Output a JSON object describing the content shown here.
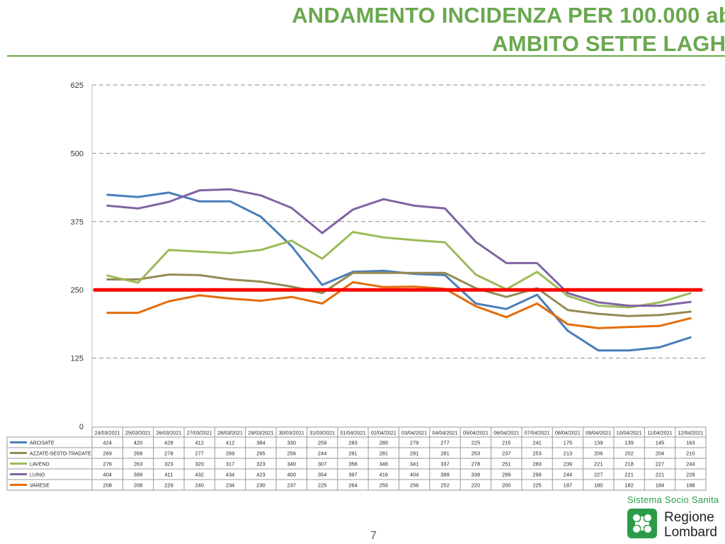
{
  "header": {
    "title_line1": "ANDAMENTO INCIDENZA PER 100.000 ab",
    "title_line2": "AMBITO SETTE LAGHI"
  },
  "page_number": "7",
  "brand": {
    "subtitle": "Sistema Socio Sanita",
    "name_line1": "Regione",
    "name_line2": "Lombard"
  },
  "chart_data": {
    "type": "line",
    "title": "",
    "xlabel": "",
    "ylabel": "",
    "ylim": [
      0,
      625
    ],
    "yticks": [
      0,
      125,
      250,
      375,
      500,
      625
    ],
    "grid": true,
    "threshold": {
      "value": 250,
      "color": "#ff0000"
    },
    "categories": [
      "24/03/2021",
      "25/03/2021",
      "26/03/2021",
      "27/03/2021",
      "28/03/2021",
      "29/03/2021",
      "30/03/2021",
      "31/03/2021",
      "01/04/2021",
      "02/04/2021",
      "03/04/2021",
      "04/04/2021",
      "05/04/2021",
      "06/04/2021",
      "07/04/2021",
      "08/04/2021",
      "09/04/2021",
      "10/04/2021",
      "11/04/2021",
      "12/04/2021"
    ],
    "series": [
      {
        "name": "ARCISATE",
        "color": "#4a7ebb",
        "values": [
          424,
          420,
          428,
          412,
          412,
          384,
          330,
          259,
          283,
          285,
          279,
          277,
          225,
          215,
          241,
          175,
          139,
          139,
          145,
          163
        ]
      },
      {
        "name": "AZZATE-SESTO-TRADATE",
        "color": "#948a54",
        "values": [
          269,
          269,
          278,
          277,
          269,
          265,
          256,
          244,
          281,
          281,
          281,
          281,
          253,
          237,
          253,
          213,
          206,
          202,
          204,
          210
        ]
      },
      {
        "name": "LAVENO",
        "color": "#9bbb59",
        "values": [
          276,
          263,
          323,
          320,
          317,
          323,
          340,
          307,
          356,
          346,
          341,
          337,
          278,
          251,
          283,
          239,
          221,
          218,
          227,
          244
        ]
      },
      {
        "name": "LUINO",
        "color": "#8064a2",
        "values": [
          404,
          399,
          411,
          432,
          434,
          423,
          400,
          354,
          397,
          416,
          404,
          399,
          338,
          299,
          299,
          244,
          227,
          221,
          221,
          228
        ]
      },
      {
        "name": "VARESE",
        "color": "#e46c0a",
        "values": [
          208,
          208,
          229,
          240,
          234,
          230,
          237,
          225,
          264,
          255,
          256,
          252,
          220,
          200,
          225,
          187,
          180,
          182,
          184,
          198
        ]
      }
    ]
  }
}
